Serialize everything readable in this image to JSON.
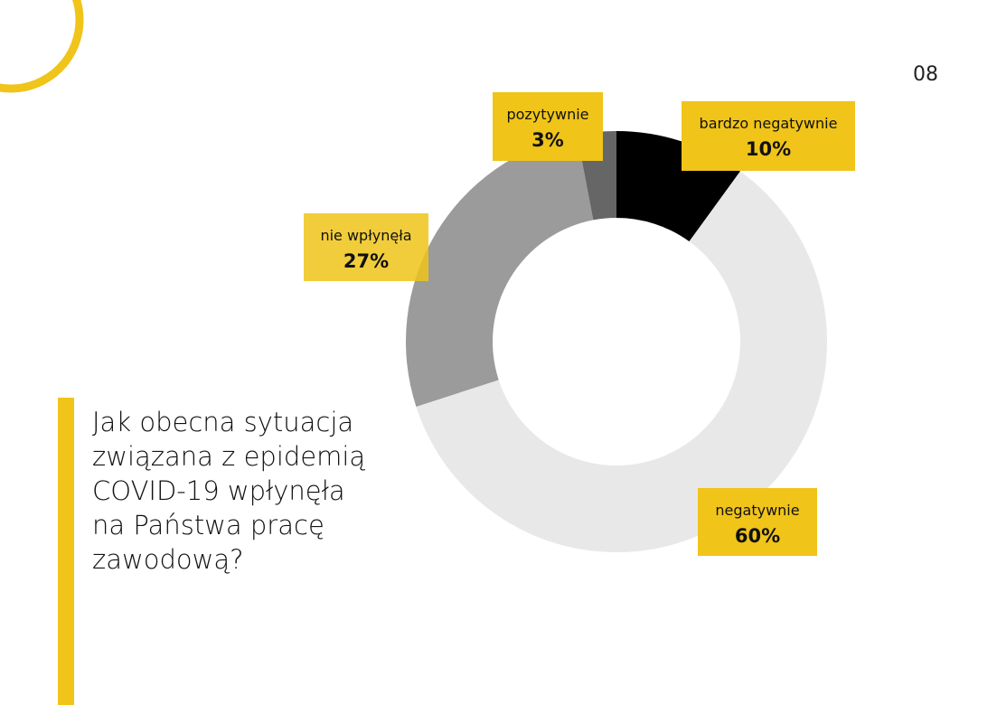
{
  "page_number": "08",
  "chart_data": {
    "type": "donut",
    "title": "Jak obecna sytuacja związana z epidemią COVID-19 wpłynęła na Państwa pracę zawodową?",
    "categories": [
      "bardzo negatywnie",
      "negatywnie",
      "nie wpłynęła",
      "pozytywnie"
    ],
    "values": [
      10,
      60,
      27,
      3
    ],
    "value_labels": [
      "10%",
      "60%",
      "27%",
      "3%"
    ],
    "colors": [
      "#000000",
      "#e8e8e8",
      "#9b9b9b",
      "#666666"
    ]
  }
}
